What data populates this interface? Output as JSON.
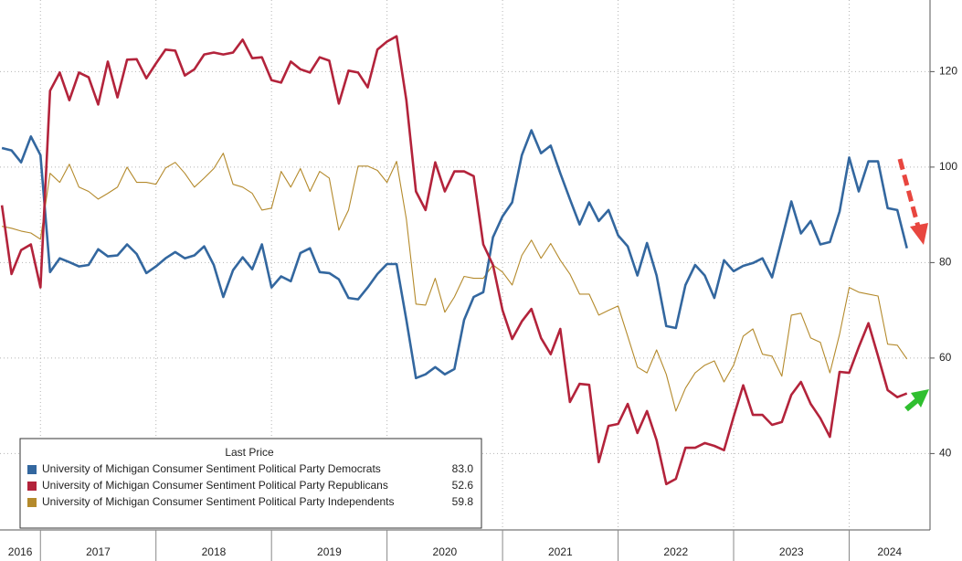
{
  "chart_data": {
    "type": "line",
    "legend_title": "Last Price",
    "x": [
      2016.667,
      2016.75,
      2016.833,
      2016.917,
      2017,
      2017.083,
      2017.167,
      2017.25,
      2017.333,
      2017.417,
      2017.5,
      2017.583,
      2017.667,
      2017.75,
      2017.833,
      2017.917,
      2018,
      2018.083,
      2018.167,
      2018.25,
      2018.333,
      2018.417,
      2018.5,
      2018.583,
      2018.667,
      2018.75,
      2018.833,
      2018.917,
      2019,
      2019.083,
      2019.167,
      2019.25,
      2019.333,
      2019.417,
      2019.5,
      2019.583,
      2019.667,
      2019.75,
      2019.833,
      2019.917,
      2020,
      2020.083,
      2020.167,
      2020.25,
      2020.333,
      2020.417,
      2020.5,
      2020.583,
      2020.667,
      2020.75,
      2020.833,
      2020.917,
      2021,
      2021.083,
      2021.167,
      2021.25,
      2021.333,
      2021.417,
      2021.5,
      2021.583,
      2021.667,
      2021.75,
      2021.833,
      2021.917,
      2022,
      2022.083,
      2022.167,
      2022.25,
      2022.333,
      2022.417,
      2022.5,
      2022.583,
      2022.667,
      2022.75,
      2022.833,
      2022.917,
      2023,
      2023.083,
      2023.167,
      2023.25,
      2023.333,
      2023.417,
      2023.5,
      2023.583,
      2023.667,
      2023.75,
      2023.833,
      2023.917,
      2024,
      2024.083,
      2024.167,
      2024.25,
      2024.333,
      2024.417,
      2024.5
    ],
    "series": [
      {
        "name": "University of Michigan Consumer Sentiment Political Party Democrats",
        "color": "#33679f",
        "last_price": "83.0",
        "values": [
          104,
          103.5,
          101,
          106.4,
          102.5,
          78,
          80.9,
          80.1,
          79.2,
          79.5,
          82.8,
          81.3,
          81.5,
          83.8,
          81.8,
          77.8,
          79.2,
          80.9,
          82.2,
          80.9,
          81.5,
          83.4,
          79.5,
          72.8,
          78.4,
          81.1,
          78.6,
          83.8,
          74.8,
          77.1,
          76.1,
          82,
          83,
          78,
          77.8,
          76.5,
          72.6,
          72.3,
          74.8,
          77.6,
          79.7,
          79.7,
          68,
          55.8,
          56.6,
          58.1,
          56.6,
          57.7,
          68,
          72.8,
          73.8,
          85.3,
          89.7,
          92.6,
          102.5,
          107.7,
          102.9,
          104.5,
          98.7,
          93.3,
          88,
          92.6,
          88.7,
          91,
          85.7,
          83.4,
          77.3,
          84.1,
          77.3,
          66.7,
          66.3,
          75.3,
          79.5,
          77.3,
          72.6,
          80.5,
          78.2,
          79.3,
          79.9,
          80.9,
          76.9,
          84.9,
          92.8,
          86.1,
          88.7,
          83.8,
          84.3,
          90.7,
          102,
          94.9,
          101.2,
          101.2,
          91.4,
          91,
          83
        ]
      },
      {
        "name": "University of Michigan Consumer Sentiment Political Party Republicans",
        "color": "#b3233b",
        "last_price": "52.6",
        "values": [
          92,
          77.6,
          82.6,
          83.8,
          74.8,
          116,
          119.8,
          114,
          119.8,
          118.8,
          113.1,
          122.1,
          114.6,
          122.5,
          122.6,
          118.6,
          121.7,
          124.6,
          124.4,
          119.2,
          120.5,
          123.6,
          124,
          123.6,
          124,
          126.7,
          122.8,
          123,
          118.2,
          117.7,
          122.1,
          120.5,
          119.8,
          123,
          122.3,
          113.3,
          120.2,
          119.8,
          116.7,
          124.6,
          126.3,
          127.4,
          114,
          94.9,
          91,
          101,
          94.9,
          99.1,
          99.1,
          98.1,
          83.8,
          79.5,
          70,
          64,
          67.7,
          70.3,
          64.2,
          60.8,
          66.1,
          50.8,
          54.6,
          54.4,
          38.2,
          45.8,
          46.2,
          50.4,
          44.3,
          48.9,
          42.8,
          33.6,
          34.7,
          41.2,
          41.2,
          42.2,
          41.6,
          40.7,
          47.7,
          54.3,
          48.1,
          48.1,
          46,
          46.6,
          52.3,
          55,
          50.4,
          47.4,
          43.5,
          57.1,
          56.9,
          62.3,
          67.3,
          60.4,
          53.3,
          51.8,
          52.6
        ]
      },
      {
        "name": "University of Michigan Consumer Sentiment Political Party Independents",
        "color": "#b48a2c",
        "last_price": "59.8",
        "values": [
          87.6,
          87.2,
          86.6,
          86.2,
          84.9,
          98.7,
          96.8,
          100.6,
          95.8,
          94.9,
          93.3,
          94.5,
          95.8,
          100,
          96.8,
          96.8,
          96.4,
          99.8,
          101,
          98.7,
          95.8,
          97.7,
          99.7,
          102.9,
          96.4,
          95.8,
          94.5,
          91,
          91.4,
          99.1,
          95.8,
          99.7,
          94.9,
          99.1,
          97.7,
          86.8,
          91,
          100.2,
          100.2,
          99.3,
          96.8,
          101.2,
          89.1,
          71.3,
          71.1,
          76.7,
          69.6,
          72.8,
          77.1,
          76.7,
          76.7,
          79.5,
          78,
          75.3,
          81.5,
          84.7,
          80.9,
          84,
          80.5,
          77.6,
          73.4,
          73.4,
          69,
          70,
          70.9,
          64.6,
          58.1,
          56.9,
          61.7,
          56.6,
          48.9,
          53.7,
          56.9,
          58.5,
          59.4,
          55,
          58.5,
          64.6,
          66.1,
          60.8,
          60.4,
          56.2,
          69,
          69.4,
          64.2,
          63.3,
          56.9,
          65,
          74.8,
          73.8,
          73.4,
          73,
          62.9,
          62.7,
          59.8
        ]
      }
    ],
    "xlim": [
      2016.65,
      2024.7
    ],
    "xticks": [
      {
        "value": 2016,
        "label": "2016"
      },
      {
        "value": 2017,
        "label": "2017"
      },
      {
        "value": 2018,
        "label": "2018"
      },
      {
        "value": 2019,
        "label": "2019"
      },
      {
        "value": 2020,
        "label": "2020"
      },
      {
        "value": 2021,
        "label": "2021"
      },
      {
        "value": 2022,
        "label": "2022"
      },
      {
        "value": 2023,
        "label": "2023"
      },
      {
        "value": 2024,
        "label": "2024"
      }
    ],
    "ylim": [
      24,
      135
    ],
    "yticks": [
      40,
      60,
      80,
      100,
      120
    ],
    "grid": true
  }
}
